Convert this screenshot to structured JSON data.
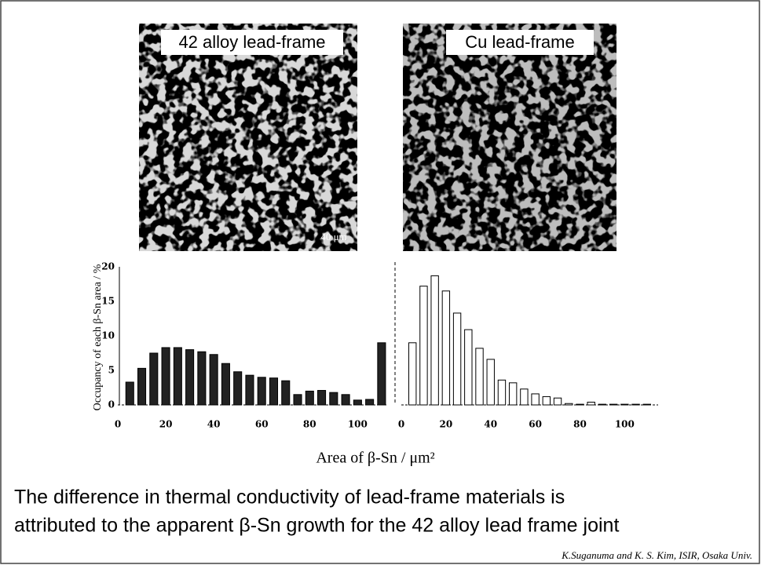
{
  "images": [
    {
      "label": "42 alloy lead-frame",
      "scale": "40 μm"
    },
    {
      "label": "Cu lead-frame"
    }
  ],
  "axis_labels": {
    "y": "Occupancy of each β-Sn area / %",
    "x": "Area of β-Sn / μm²"
  },
  "chart_data": [
    {
      "type": "bar",
      "color": "#222222",
      "edgecolor": "#000000",
      "x": [
        5,
        10,
        15,
        20,
        25,
        30,
        35,
        40,
        45,
        50,
        55,
        60,
        65,
        70,
        75,
        80,
        85,
        90,
        95,
        100,
        105,
        110
      ],
      "values": [
        3.3,
        5.3,
        7.5,
        8.3,
        8.3,
        8.0,
        7.7,
        7.3,
        6.0,
        4.8,
        4.3,
        4.0,
        3.9,
        3.5,
        1.5,
        2.0,
        2.1,
        1.8,
        1.5,
        0.7,
        0.8,
        9.0
      ],
      "xlim": [
        0,
        112
      ],
      "ylim": [
        0,
        20
      ],
      "xticks": [
        0,
        20,
        40,
        60,
        80,
        100
      ],
      "yticks": [
        0,
        5,
        10,
        15,
        20
      ]
    },
    {
      "type": "bar",
      "color": "#ffffff",
      "edgecolor": "#000000",
      "x": [
        5,
        10,
        15,
        20,
        25,
        30,
        35,
        40,
        45,
        50,
        55,
        60,
        65,
        70,
        75,
        80,
        85,
        90,
        95,
        100,
        105,
        110
      ],
      "values": [
        9.0,
        17.2,
        18.7,
        16.5,
        13.3,
        10.9,
        8.2,
        6.6,
        3.6,
        3.2,
        2.3,
        1.6,
        1.2,
        1.0,
        0.2,
        0.1,
        0.4,
        0.1,
        0.1,
        0.1,
        0.1,
        0.1
      ],
      "xlim": [
        0,
        115
      ],
      "ylim": [
        0,
        20
      ],
      "xticks": [
        0,
        20,
        40,
        60,
        80,
        100
      ]
    }
  ],
  "caption": [
    "The difference in thermal conductivity of lead-frame materials is",
    "attributed to the apparent β-Sn growth for the 42 alloy lead frame joint"
  ],
  "credit": "K.Suganuma and K. S. Kim, ISIR, Osaka Univ."
}
